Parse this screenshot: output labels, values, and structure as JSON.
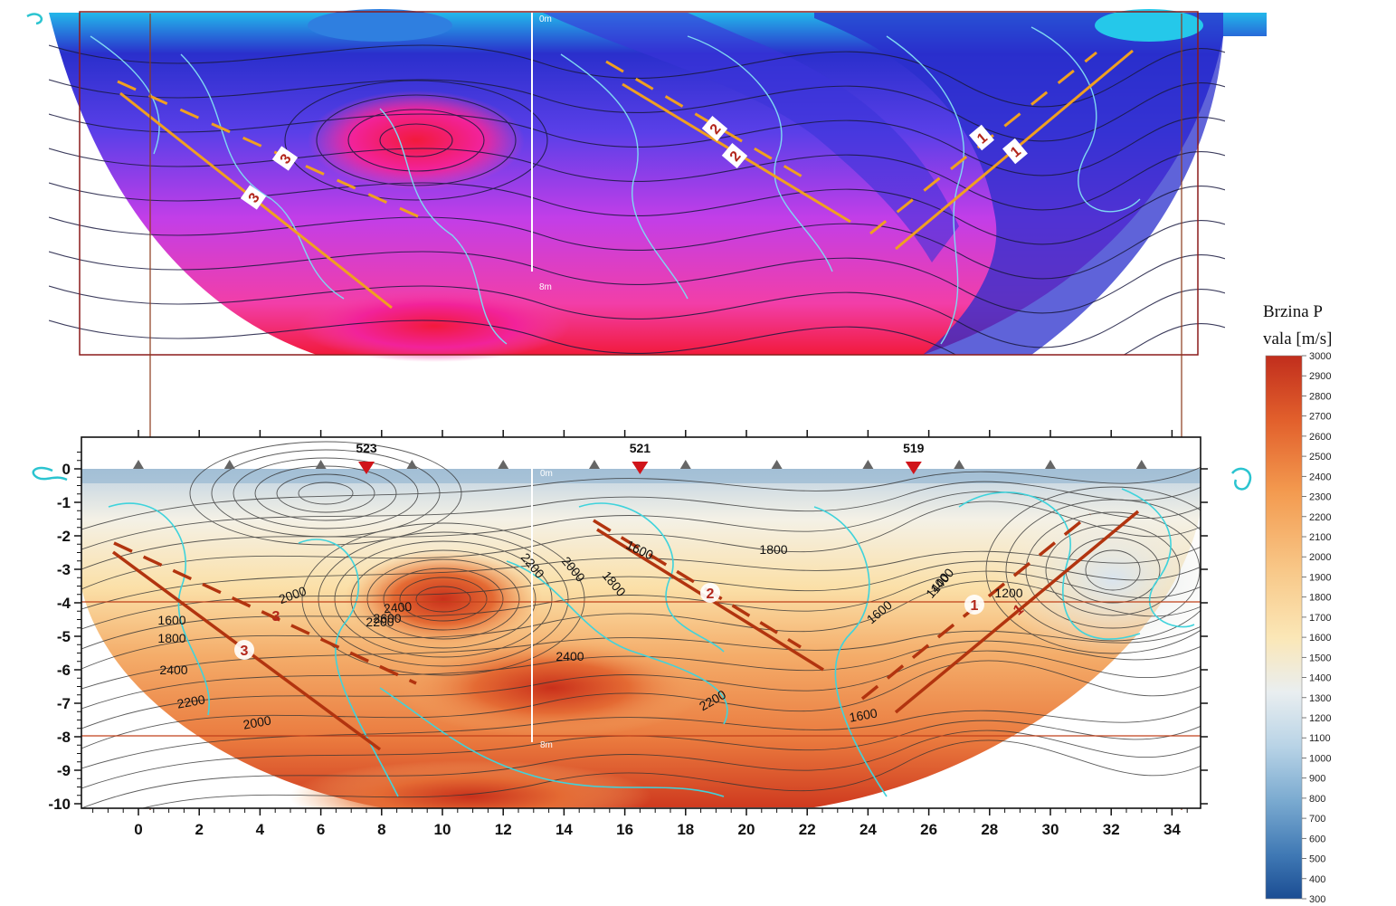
{
  "chart_data": [
    {
      "type": "heatmap",
      "panel": "upper",
      "depth_labels": [
        "0m",
        "8m"
      ],
      "fault_labels": [
        "1",
        "1",
        "2",
        "2",
        "3",
        "3"
      ],
      "colormap": [
        "#f21a3c",
        "#f23ea8",
        "#d63de0",
        "#a53ef2",
        "#7a3ff2",
        "#4a3be8",
        "#2a2fcc",
        "#1c2ab4",
        "#2f7fe0",
        "#25c8ea"
      ]
    },
    {
      "type": "heatmap",
      "panel": "lower",
      "xlim": [
        -2,
        35
      ],
      "ylim": [
        -10,
        0
      ],
      "x_ticks": [
        "0",
        "2",
        "4",
        "6",
        "8",
        "10",
        "12",
        "14",
        "16",
        "18",
        "20",
        "22",
        "24",
        "26",
        "28",
        "30",
        "32",
        "34"
      ],
      "y_ticks": [
        "0",
        "-1",
        "-2",
        "-3",
        "-4",
        "-5",
        "-6",
        "-7",
        "-8",
        "-9",
        "-10"
      ],
      "geophones": [
        {
          "label": "523",
          "x": 7.5
        },
        {
          "label": "521",
          "x": 16.5
        },
        {
          "label": "519",
          "x": 25.5
        }
      ],
      "contour_labels": [
        "1600",
        "1800",
        "2000",
        "2200",
        "2400",
        "2600",
        "2400",
        "2200",
        "2000",
        "2200",
        "2000",
        "1800",
        "1600",
        "2400",
        "2200",
        "1600",
        "1400",
        "1800",
        "1600",
        "1400",
        "1200"
      ],
      "fault_labels": [
        "1",
        "1",
        "2",
        "3",
        "3"
      ],
      "depth_labels": [
        "0m",
        "8m"
      ],
      "reference_lines_depth": [
        -4,
        -8
      ],
      "colorbar": {
        "title_line1": "Brzina P",
        "title_line2": "vala [m/s]",
        "min": 300,
        "max": 3000,
        "ticks": [
          "3000",
          "2900",
          "2800",
          "2700",
          "2600",
          "2500",
          "2400",
          "2300",
          "2200",
          "2100",
          "2000",
          "1900",
          "1800",
          "1700",
          "1600",
          "1500",
          "1400",
          "1300",
          "1200",
          "1100",
          "1000",
          "900",
          "800",
          "700",
          "600",
          "500",
          "400",
          "300"
        ],
        "colors": [
          "#c12e1d",
          "#e2602c",
          "#f39a4f",
          "#f8c98a",
          "#fbe7b7",
          "#e9eef0",
          "#b8d3e6",
          "#7aaad0",
          "#3f78b4",
          "#1b4d93"
        ]
      }
    }
  ]
}
